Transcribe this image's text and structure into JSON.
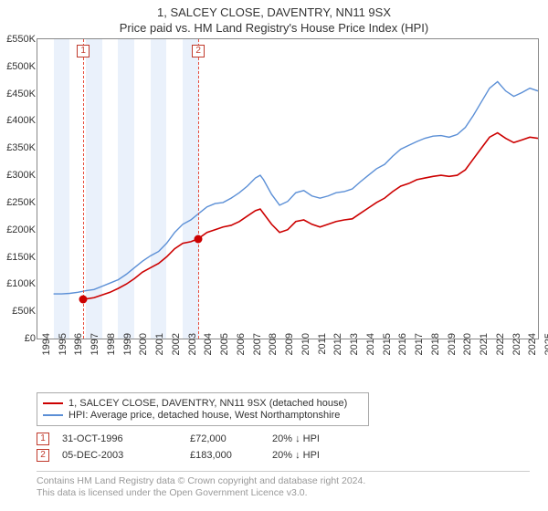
{
  "titles": {
    "line1": "1, SALCEY CLOSE, DAVENTRY, NN11 9SX",
    "line2": "Price paid vs. HM Land Registry's House Price Index (HPI)"
  },
  "chart": {
    "type": "line",
    "x_min": 1994,
    "x_max": 2025,
    "y_min": 0,
    "y_max": 550000,
    "y_ticks": [
      0,
      50000,
      100000,
      150000,
      200000,
      250000,
      300000,
      350000,
      400000,
      450000,
      500000,
      550000
    ],
    "y_tick_labels": [
      "£0",
      "£50K",
      "£100K",
      "£150K",
      "£200K",
      "£250K",
      "£300K",
      "£350K",
      "£400K",
      "£450K",
      "£500K",
      "£550K"
    ],
    "x_ticks": [
      1994,
      1995,
      1996,
      1997,
      1998,
      1999,
      2000,
      2001,
      2002,
      2003,
      2004,
      2005,
      2006,
      2007,
      2008,
      2009,
      2010,
      2011,
      2012,
      2013,
      2014,
      2015,
      2016,
      2017,
      2018,
      2019,
      2020,
      2021,
      2022,
      2023,
      2024,
      2025
    ],
    "band_years": [
      1995,
      1997,
      1999,
      2001,
      2003
    ],
    "background_color": "#ffffff",
    "band_color": "#eaf1fb",
    "axis_color": "#888888",
    "text_color": "#333333",
    "series": {
      "property": {
        "label": "1, SALCEY CLOSE, DAVENTRY, NN11 9SX (detached house)",
        "color": "#cc0000",
        "width": 1.6,
        "data": [
          [
            1996.83,
            72000
          ],
          [
            1997.5,
            75000
          ],
          [
            1998.0,
            80000
          ],
          [
            1998.5,
            85000
          ],
          [
            1999.0,
            92000
          ],
          [
            1999.5,
            100000
          ],
          [
            2000.0,
            110000
          ],
          [
            2000.5,
            122000
          ],
          [
            2001.0,
            130000
          ],
          [
            2001.5,
            138000
          ],
          [
            2002.0,
            150000
          ],
          [
            2002.5,
            165000
          ],
          [
            2003.0,
            175000
          ],
          [
            2003.5,
            178000
          ],
          [
            2003.93,
            183000
          ],
          [
            2004.5,
            195000
          ],
          [
            2005.0,
            200000
          ],
          [
            2005.5,
            205000
          ],
          [
            2006.0,
            208000
          ],
          [
            2006.5,
            215000
          ],
          [
            2007.0,
            225000
          ],
          [
            2007.5,
            235000
          ],
          [
            2007.8,
            238000
          ],
          [
            2008.0,
            230000
          ],
          [
            2008.5,
            210000
          ],
          [
            2009.0,
            195000
          ],
          [
            2009.5,
            200000
          ],
          [
            2010.0,
            215000
          ],
          [
            2010.5,
            218000
          ],
          [
            2011.0,
            210000
          ],
          [
            2011.5,
            205000
          ],
          [
            2012.0,
            210000
          ],
          [
            2012.5,
            215000
          ],
          [
            2013.0,
            218000
          ],
          [
            2013.5,
            220000
          ],
          [
            2014.0,
            230000
          ],
          [
            2014.5,
            240000
          ],
          [
            2015.0,
            250000
          ],
          [
            2015.5,
            258000
          ],
          [
            2016.0,
            270000
          ],
          [
            2016.5,
            280000
          ],
          [
            2017.0,
            285000
          ],
          [
            2017.5,
            292000
          ],
          [
            2018.0,
            295000
          ],
          [
            2018.5,
            298000
          ],
          [
            2019.0,
            300000
          ],
          [
            2019.5,
            298000
          ],
          [
            2020.0,
            300000
          ],
          [
            2020.5,
            310000
          ],
          [
            2021.0,
            330000
          ],
          [
            2021.5,
            350000
          ],
          [
            2022.0,
            370000
          ],
          [
            2022.5,
            378000
          ],
          [
            2023.0,
            368000
          ],
          [
            2023.5,
            360000
          ],
          [
            2024.0,
            365000
          ],
          [
            2024.5,
            370000
          ],
          [
            2025.0,
            368000
          ]
        ]
      },
      "hpi": {
        "label": "HPI: Average price, detached house, West Northamptonshire",
        "color": "#5b8fd6",
        "width": 1.4,
        "data": [
          [
            1995.0,
            82000
          ],
          [
            1995.5,
            82000
          ],
          [
            1996.0,
            83000
          ],
          [
            1996.5,
            85000
          ],
          [
            1997.0,
            88000
          ],
          [
            1997.5,
            90000
          ],
          [
            1998.0,
            96000
          ],
          [
            1998.5,
            102000
          ],
          [
            1999.0,
            108000
          ],
          [
            1999.5,
            118000
          ],
          [
            2000.0,
            130000
          ],
          [
            2000.5,
            142000
          ],
          [
            2001.0,
            152000
          ],
          [
            2001.5,
            160000
          ],
          [
            2002.0,
            175000
          ],
          [
            2002.5,
            195000
          ],
          [
            2003.0,
            210000
          ],
          [
            2003.5,
            218000
          ],
          [
            2004.0,
            230000
          ],
          [
            2004.5,
            242000
          ],
          [
            2005.0,
            248000
          ],
          [
            2005.5,
            250000
          ],
          [
            2006.0,
            258000
          ],
          [
            2006.5,
            268000
          ],
          [
            2007.0,
            280000
          ],
          [
            2007.5,
            295000
          ],
          [
            2007.8,
            300000
          ],
          [
            2008.0,
            292000
          ],
          [
            2008.5,
            265000
          ],
          [
            2009.0,
            245000
          ],
          [
            2009.5,
            252000
          ],
          [
            2010.0,
            268000
          ],
          [
            2010.5,
            272000
          ],
          [
            2011.0,
            262000
          ],
          [
            2011.5,
            258000
          ],
          [
            2012.0,
            262000
          ],
          [
            2012.5,
            268000
          ],
          [
            2013.0,
            270000
          ],
          [
            2013.5,
            275000
          ],
          [
            2014.0,
            288000
          ],
          [
            2014.5,
            300000
          ],
          [
            2015.0,
            312000
          ],
          [
            2015.5,
            320000
          ],
          [
            2016.0,
            335000
          ],
          [
            2016.5,
            348000
          ],
          [
            2017.0,
            355000
          ],
          [
            2017.5,
            362000
          ],
          [
            2018.0,
            368000
          ],
          [
            2018.5,
            372000
          ],
          [
            2019.0,
            373000
          ],
          [
            2019.5,
            370000
          ],
          [
            2020.0,
            375000
          ],
          [
            2020.5,
            388000
          ],
          [
            2021.0,
            410000
          ],
          [
            2021.5,
            435000
          ],
          [
            2022.0,
            460000
          ],
          [
            2022.5,
            472000
          ],
          [
            2023.0,
            455000
          ],
          [
            2023.5,
            445000
          ],
          [
            2024.0,
            452000
          ],
          [
            2024.5,
            460000
          ],
          [
            2025.0,
            455000
          ]
        ]
      }
    },
    "events": [
      {
        "n": "1",
        "year": 1996.83,
        "value": 72000,
        "dash_color": "#e74c3c",
        "dot_color": "#cc0000"
      },
      {
        "n": "2",
        "year": 2003.93,
        "value": 183000,
        "dash_color": "#e74c3c",
        "dot_color": "#cc0000"
      }
    ]
  },
  "legend": [
    {
      "color": "#cc0000",
      "label": "1, SALCEY CLOSE, DAVENTRY, NN11 9SX (detached house)"
    },
    {
      "color": "#5b8fd6",
      "label": "HPI: Average price, detached house, West Northamptonshire"
    }
  ],
  "table": {
    "rows": [
      {
        "n": "1",
        "date": "31-OCT-1996",
        "price": "£72,000",
        "delta": "20% ↓ HPI"
      },
      {
        "n": "2",
        "date": "05-DEC-2003",
        "price": "£183,000",
        "delta": "20% ↓ HPI"
      }
    ]
  },
  "footer": {
    "line1": "Contains HM Land Registry data © Crown copyright and database right 2024.",
    "line2": "This data is licensed under the Open Government Licence v3.0."
  }
}
